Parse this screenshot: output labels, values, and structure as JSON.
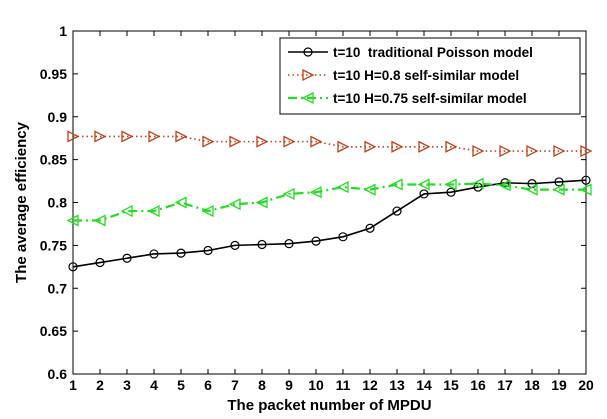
{
  "chart_data": {
    "type": "line",
    "xlabel": "The packet number of MPDU",
    "ylabel": "The average efficiency",
    "xlim": [
      1,
      20
    ],
    "ylim": [
      0.6,
      1
    ],
    "x_ticks": [
      1,
      2,
      3,
      4,
      5,
      6,
      7,
      8,
      9,
      10,
      11,
      12,
      13,
      14,
      15,
      16,
      17,
      18,
      19,
      20
    ],
    "y_ticks": [
      "0.6",
      "0.65",
      "0.7",
      "0.75",
      "0.8",
      "0.85",
      "0.9",
      "0.95",
      "1"
    ],
    "x": [
      1,
      2,
      3,
      4,
      5,
      6,
      7,
      8,
      9,
      10,
      11,
      12,
      13,
      14,
      15,
      16,
      17,
      18,
      19,
      20
    ],
    "grid": false,
    "legend_position": "top-right",
    "series": [
      {
        "name": "t=10  traditional Poisson model",
        "color": "#000000",
        "line_style": "solid",
        "marker": "circle",
        "values": [
          0.725,
          0.73,
          0.735,
          0.74,
          0.741,
          0.744,
          0.75,
          0.751,
          0.752,
          0.755,
          0.76,
          0.77,
          0.79,
          0.81,
          0.812,
          0.818,
          0.823,
          0.822,
          0.824,
          0.826
        ]
      },
      {
        "name": "t=10 H=0.8 self-similar model",
        "color": "#c0401a",
        "line_style": "dotted",
        "marker": "triangle-right",
        "values": [
          0.877,
          0.877,
          0.877,
          0.877,
          0.877,
          0.871,
          0.871,
          0.871,
          0.871,
          0.871,
          0.865,
          0.865,
          0.865,
          0.865,
          0.865,
          0.86,
          0.86,
          0.86,
          0.86,
          0.86
        ]
      },
      {
        "name": "t=10 H=0.75 self-similar model",
        "color": "#22dd22",
        "line_style": "dashdot",
        "marker": "triangle-left",
        "values": [
          0.779,
          0.779,
          0.79,
          0.79,
          0.8,
          0.79,
          0.798,
          0.8,
          0.81,
          0.812,
          0.818,
          0.815,
          0.821,
          0.821,
          0.821,
          0.822,
          0.82,
          0.815,
          0.815,
          0.815
        ]
      }
    ]
  }
}
